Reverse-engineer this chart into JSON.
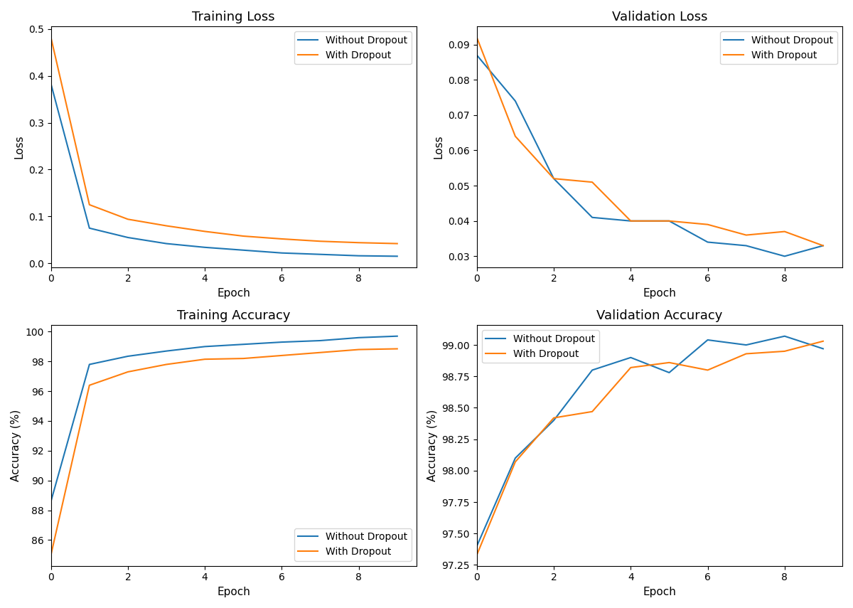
{
  "epochs": [
    0,
    1,
    2,
    3,
    4,
    5,
    6,
    7,
    8,
    9
  ],
  "train_loss_no_dropout": [
    0.383,
    0.075,
    0.055,
    0.042,
    0.034,
    0.028,
    0.022,
    0.019,
    0.016,
    0.015
  ],
  "train_loss_with_dropout": [
    0.482,
    0.125,
    0.094,
    0.08,
    0.068,
    0.058,
    0.052,
    0.047,
    0.044,
    0.042
  ],
  "val_loss_no_dropout": [
    0.087,
    0.074,
    0.052,
    0.041,
    0.04,
    0.04,
    0.034,
    0.033,
    0.03,
    0.033
  ],
  "val_loss_with_dropout": [
    0.092,
    0.064,
    0.052,
    0.051,
    0.04,
    0.04,
    0.039,
    0.036,
    0.037,
    0.033
  ],
  "train_acc_no_dropout": [
    88.6,
    97.8,
    98.35,
    98.7,
    99.0,
    99.15,
    99.3,
    99.4,
    99.6,
    99.7
  ],
  "train_acc_with_dropout": [
    85.0,
    96.4,
    97.3,
    97.8,
    98.15,
    98.2,
    98.4,
    98.6,
    98.8,
    98.85
  ],
  "val_acc_no_dropout": [
    97.4,
    98.1,
    98.4,
    98.8,
    98.9,
    98.78,
    99.04,
    99.0,
    99.07,
    98.97
  ],
  "val_acc_with_dropout": [
    97.33,
    98.07,
    98.42,
    98.47,
    98.82,
    98.86,
    98.8,
    98.93,
    98.95,
    99.03
  ],
  "color_no_dropout": "#1f77b4",
  "color_with_dropout": "#ff7f0e",
  "label_no_dropout": "Without Dropout",
  "label_with_dropout": "With Dropout",
  "title_train_loss": "Training Loss",
  "title_val_loss": "Validation Loss",
  "title_train_acc": "Training Accuracy",
  "title_val_acc": "Validation Accuracy",
  "xlabel": "Epoch",
  "ylabel_loss": "Loss",
  "ylabel_acc": "Accuracy (%)",
  "xticks": [
    0,
    2,
    4,
    6,
    8
  ],
  "xlim_max": 9.5
}
